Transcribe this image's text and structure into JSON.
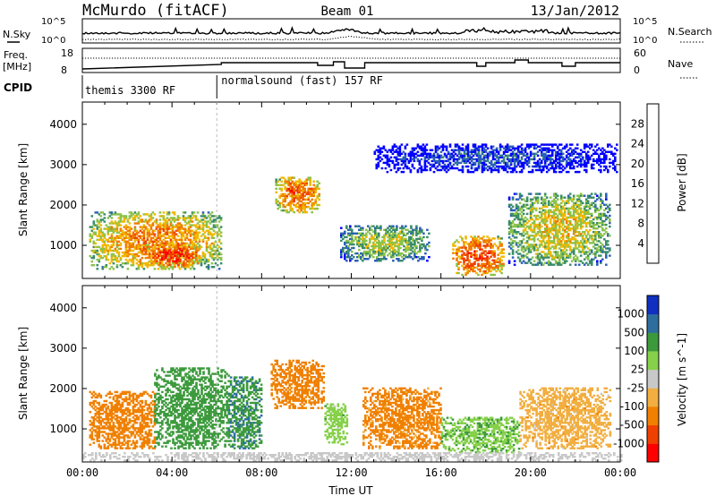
{
  "header": {
    "station": "McMurdo (fitACF)",
    "beam": "Beam 01",
    "date": "13/Jan/2012"
  },
  "top_panels": {
    "nsky_label": "N.Sky",
    "nsky_ticks": [
      "10^5",
      "10^0"
    ],
    "nsearch_label": "N.Search",
    "nsearch_ticks": [
      "10^5",
      "10^0"
    ],
    "freq_label": "Freq.",
    "freq_unit": "[MHz]",
    "freq_ticks": [
      "18",
      "8"
    ],
    "nave_label": "Nave",
    "nave_ticks": [
      "60",
      "0"
    ],
    "cpid_label": "CPID",
    "cpid_segments": [
      {
        "start_hour": 0,
        "end_hour": 6,
        "label": "themis 3300 RF"
      },
      {
        "start_hour": 6,
        "end_hour": 24,
        "label": "normalsound (fast) 157 RF"
      }
    ]
  },
  "colors": {
    "power_scale": [
      "#0000ff",
      "#2b5fb8",
      "#3a8c6a",
      "#8ac24a",
      "#f0b800",
      "#f07a00",
      "#f04000",
      "#ff0000"
    ],
    "velocity_scale": [
      "#ff0000",
      "#f04000",
      "#f08000",
      "#f2ae40",
      "#c8c8c8",
      "#86d04a",
      "#3c9a3c",
      "#2e6e9e",
      "#1030c0"
    ]
  },
  "chart_data": [
    {
      "type": "heatmap",
      "panel": "power",
      "ylabel": "Slant Range [km]",
      "yticks": [
        "1000",
        "2000",
        "3000",
        "4000"
      ],
      "ylim": [
        180,
        4550
      ],
      "xlim": [
        0,
        24
      ],
      "colorbar_label": "Power [dB]",
      "colorbar_ticks": [
        "4",
        "8",
        "12",
        "16",
        "20",
        "24",
        "28"
      ],
      "features": [
        {
          "hour_start": 0.3,
          "hour_end": 6.2,
          "range_start": 400,
          "range_end": 1800,
          "value_db": 22
        },
        {
          "hour_start": 2.8,
          "hour_end": 5.2,
          "range_start": 450,
          "range_end": 1000,
          "value_db": 28
        },
        {
          "hour_start": 8.6,
          "hour_end": 10.6,
          "range_start": 1800,
          "range_end": 2700,
          "value_db": 24
        },
        {
          "hour_start": 9.0,
          "hour_end": 9.6,
          "range_start": 2200,
          "range_end": 2550,
          "value_db": 28
        },
        {
          "hour_start": 11.5,
          "hour_end": 15.5,
          "range_start": 600,
          "range_end": 1500,
          "value_db": 16
        },
        {
          "hour_start": 16.5,
          "hour_end": 18.8,
          "range_start": 250,
          "range_end": 1200,
          "value_db": 26
        },
        {
          "hour_start": 19.0,
          "hour_end": 23.5,
          "range_start": 500,
          "range_end": 2300,
          "value_db": 18
        },
        {
          "hour_start": 13.0,
          "hour_end": 23.8,
          "range_start": 2800,
          "range_end": 3500,
          "value_db": 6
        }
      ]
    },
    {
      "type": "heatmap",
      "panel": "velocity",
      "ylabel": "Slant Range [km]",
      "yticks": [
        "1000",
        "2000",
        "3000",
        "4000"
      ],
      "ylim": [
        180,
        4550
      ],
      "xlabel": "Time UT",
      "xticks": [
        "00:00",
        "04:00",
        "08:00",
        "12:00",
        "16:00",
        "20:00",
        "00:00"
      ],
      "xlim": [
        0,
        24
      ],
      "colorbar_label": "Velocity [m s^-1]",
      "colorbar_ticks": [
        "1000",
        "500",
        "100",
        "25",
        "-25",
        "-100",
        "-500",
        "-1000"
      ],
      "features": [
        {
          "hour_start": 0.3,
          "hour_end": 3.2,
          "range_start": 500,
          "range_end": 1900,
          "value_ms": -200
        },
        {
          "hour_start": 3.2,
          "hour_end": 6.5,
          "range_start": 500,
          "range_end": 2500,
          "value_ms": 300
        },
        {
          "hour_start": 6.5,
          "hour_end": 8.0,
          "range_start": 500,
          "range_end": 2300,
          "value_ms": 400
        },
        {
          "hour_start": 8.4,
          "hour_end": 10.8,
          "range_start": 1500,
          "range_end": 2700,
          "value_ms": -200
        },
        {
          "hour_start": 10.8,
          "hour_end": 11.8,
          "range_start": 600,
          "range_end": 1600,
          "value_ms": 60
        },
        {
          "hour_start": 12.5,
          "hour_end": 16.0,
          "range_start": 500,
          "range_end": 2000,
          "value_ms": -150
        },
        {
          "hour_start": 16.0,
          "hour_end": 19.5,
          "range_start": 400,
          "range_end": 1300,
          "value_ms": 80
        },
        {
          "hour_start": 19.5,
          "hour_end": 23.5,
          "range_start": 500,
          "range_end": 2000,
          "value_ms": -60
        },
        {
          "hour_start": 0.0,
          "hour_end": 24.0,
          "range_start": 200,
          "range_end": 420,
          "value_ms": 0
        }
      ]
    }
  ]
}
